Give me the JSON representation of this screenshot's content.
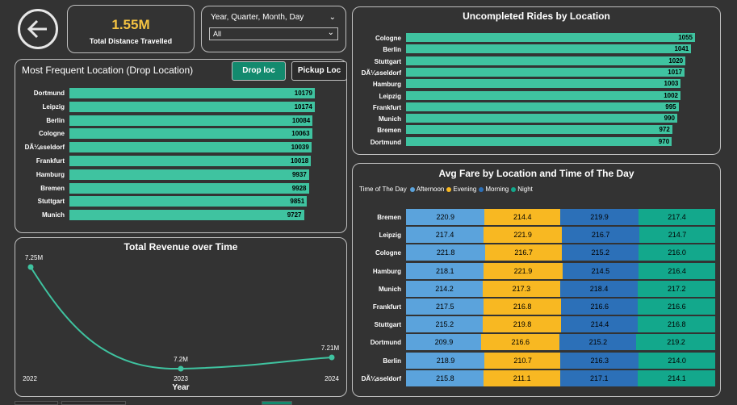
{
  "kpi": {
    "value": "1.55M",
    "label": "Total Distance Travelled"
  },
  "slicer": {
    "title": "Year, Quarter, Month, Day",
    "value": "All"
  },
  "most_frequent": {
    "title": "Most Frequent Location (Drop Location)",
    "btn_drop": "Drop loc",
    "btn_pickup": "Pickup Loc",
    "rows": [
      {
        "label": "Dortmund",
        "value": "10179"
      },
      {
        "label": "Leipzig",
        "value": "10174"
      },
      {
        "label": "Berlin",
        "value": "10084"
      },
      {
        "label": "Cologne",
        "value": "10063"
      },
      {
        "label": "DÃ¼sseldorf",
        "value": "10039"
      },
      {
        "label": "Frankfurt",
        "value": "10018"
      },
      {
        "label": "Hamburg",
        "value": "9937"
      },
      {
        "label": "Bremen",
        "value": "9928"
      },
      {
        "label": "Stuttgart",
        "value": "9851"
      },
      {
        "label": "Munich",
        "value": "9727"
      }
    ]
  },
  "uncompleted": {
    "title": "Uncompleted Rides by Location",
    "rows": [
      {
        "label": "Cologne",
        "value": "1055"
      },
      {
        "label": "Berlin",
        "value": "1041"
      },
      {
        "label": "Stuttgart",
        "value": "1020"
      },
      {
        "label": "DÃ¼sseldorf",
        "value": "1017"
      },
      {
        "label": "Hamburg",
        "value": "1003"
      },
      {
        "label": "Leipzig",
        "value": "1002"
      },
      {
        "label": "Frankfurt",
        "value": "995"
      },
      {
        "label": "Munich",
        "value": "990"
      },
      {
        "label": "Bremen",
        "value": "972"
      },
      {
        "label": "Dortmund",
        "value": "970"
      }
    ]
  },
  "revenue": {
    "title": "Total Revenue over Time",
    "xlabel": "Year"
  },
  "fare": {
    "title": "Avg Fare by Location and Time of The Day",
    "legend_title": "Time of The Day"
  },
  "colors": {
    "accent": "#3fc3a0",
    "kpi": "#f5c342",
    "afternoon": "#5ba3dc",
    "evening": "#f8b822",
    "morning": "#2c70b8",
    "night": "#13a88c"
  },
  "chart_data": [
    {
      "type": "bar",
      "title": "Most Frequent Location (Drop Location)",
      "categories": [
        "Dortmund",
        "Leipzig",
        "Berlin",
        "Cologne",
        "DÃ¼sseldorf",
        "Frankfurt",
        "Hamburg",
        "Bremen",
        "Stuttgart",
        "Munich"
      ],
      "values": [
        10179,
        10174,
        10084,
        10063,
        10039,
        10018,
        9937,
        9928,
        9851,
        9727
      ]
    },
    {
      "type": "bar",
      "title": "Uncompleted Rides by Location",
      "categories": [
        "Cologne",
        "Berlin",
        "Stuttgart",
        "DÃ¼sseldorf",
        "Hamburg",
        "Leipzig",
        "Frankfurt",
        "Munich",
        "Bremen",
        "Dortmund"
      ],
      "values": [
        1055,
        1041,
        1020,
        1017,
        1003,
        1002,
        995,
        990,
        972,
        970
      ]
    },
    {
      "type": "line",
      "title": "Total Revenue over Time",
      "xlabel": "Year",
      "x": [
        "2022",
        "2023",
        "2024"
      ],
      "values": [
        7250000,
        7200000,
        7210000
      ],
      "data_labels": [
        "7.25M",
        "7.2M",
        "7.21M"
      ]
    },
    {
      "type": "bar",
      "title": "Avg Fare by Location and Time of The Day",
      "legend_title": "Time of The Day",
      "categories": [
        "Bremen",
        "Leipzig",
        "Cologne",
        "Hamburg",
        "Munich",
        "Frankfurt",
        "Stuttgart",
        "Dortmund",
        "Berlin",
        "DÃ¼sseldorf"
      ],
      "series": [
        {
          "name": "Afternoon",
          "values": [
            220.9,
            217.4,
            221.8,
            218.1,
            214.2,
            217.5,
            215.2,
            209.9,
            218.9,
            215.8
          ]
        },
        {
          "name": "Evening",
          "values": [
            214.4,
            221.9,
            216.7,
            221.9,
            217.3,
            216.8,
            219.8,
            216.6,
            210.7,
            211.1
          ]
        },
        {
          "name": "Morning",
          "values": [
            219.9,
            216.7,
            215.2,
            214.5,
            218.4,
            216.6,
            214.4,
            215.2,
            216.3,
            217.1
          ]
        },
        {
          "name": "Night",
          "values": [
            217.4,
            214.7,
            216.0,
            216.4,
            217.2,
            216.6,
            216.8,
            219.2,
            214.0,
            214.1
          ]
        }
      ]
    }
  ]
}
